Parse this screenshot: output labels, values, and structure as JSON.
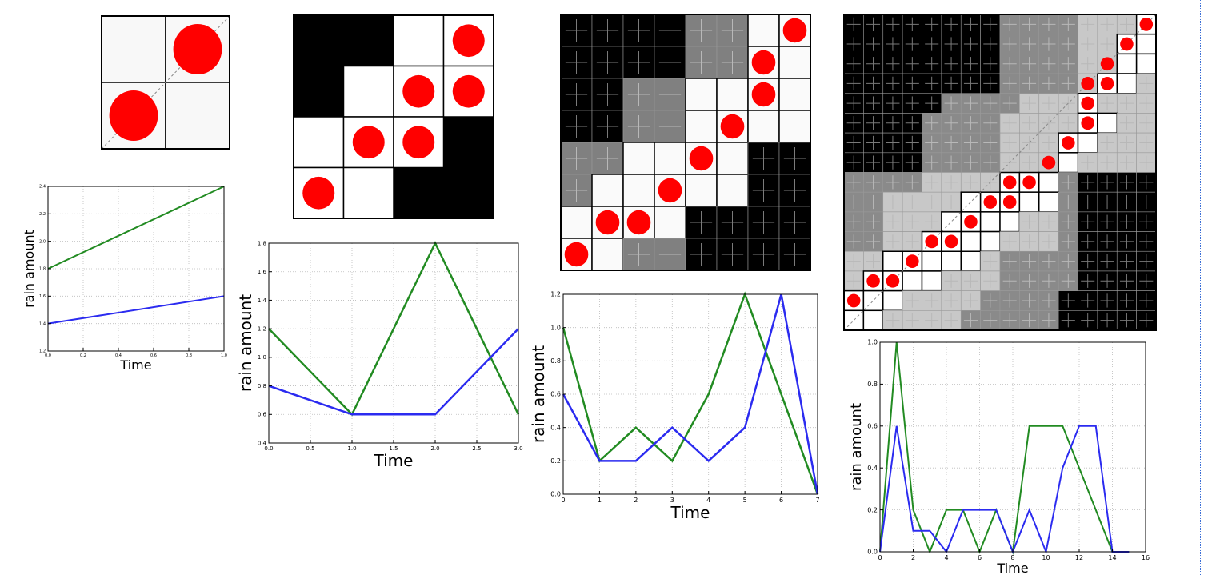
{
  "colors": {
    "series_blue": "#2b2bf0",
    "series_green": "#228b22",
    "dot_red": "#ff0000",
    "cell_black": "#000000",
    "cell_dark_gray": "#808080",
    "cell_light_gray": "#c8c8c8",
    "cell_white": "#fafafa",
    "separator": "#3a6fd8"
  },
  "matrices": [
    {
      "size": 2,
      "levels": [
        [
          0,
          1
        ],
        [
          1,
          0
        ]
      ],
      "base_colors": [
        "#f8f8f8",
        "#f8f8f8"
      ],
      "dots": [
        [
          0,
          1
        ],
        [
          1,
          0
        ]
      ],
      "dot_radius": 0.38,
      "diagonal": true
    },
    {
      "size": 4,
      "levels": [
        [
          0,
          0,
          1,
          1
        ],
        [
          0,
          1,
          1,
          1
        ],
        [
          1,
          1,
          1,
          0
        ],
        [
          1,
          1,
          0,
          0
        ]
      ],
      "base_colors": [
        "#000000",
        "#ffffff"
      ],
      "dots": [
        [
          0,
          3
        ],
        [
          1,
          2
        ],
        [
          1,
          3
        ],
        [
          2,
          1
        ],
        [
          2,
          2
        ],
        [
          3,
          0
        ]
      ],
      "dot_radius": 0.32,
      "diagonal": false
    },
    {
      "size": 8,
      "levels": [
        [
          0,
          0,
          0,
          0,
          1,
          1,
          2,
          2
        ],
        [
          0,
          0,
          0,
          0,
          1,
          1,
          2,
          2
        ],
        [
          0,
          0,
          1,
          1,
          2,
          2,
          2,
          2
        ],
        [
          0,
          0,
          1,
          1,
          2,
          2,
          2,
          2
        ],
        [
          1,
          1,
          2,
          2,
          2,
          2,
          0,
          0
        ],
        [
          1,
          2,
          2,
          2,
          2,
          2,
          0,
          0
        ],
        [
          2,
          2,
          2,
          2,
          0,
          0,
          0,
          0
        ],
        [
          2,
          2,
          1,
          1,
          0,
          0,
          0,
          0
        ]
      ],
      "base_colors": [
        "#000000",
        "#808080",
        "#fafafa"
      ],
      "dots": [
        [
          0,
          7
        ],
        [
          1,
          6
        ],
        [
          2,
          6
        ],
        [
          3,
          5
        ],
        [
          4,
          4
        ],
        [
          5,
          3
        ],
        [
          6,
          1
        ],
        [
          6,
          2
        ],
        [
          7,
          0
        ]
      ],
      "dot_radius": 0.38,
      "diagonal": false
    },
    {
      "size": 16,
      "levels": [
        [
          0,
          0,
          0,
          0,
          0,
          0,
          0,
          0,
          1,
          1,
          1,
          1,
          2,
          2,
          2,
          3
        ],
        [
          0,
          0,
          0,
          0,
          0,
          0,
          0,
          0,
          1,
          1,
          1,
          1,
          2,
          2,
          3,
          3
        ],
        [
          0,
          0,
          0,
          0,
          0,
          0,
          0,
          0,
          1,
          1,
          1,
          1,
          2,
          2,
          3,
          3
        ],
        [
          0,
          0,
          0,
          0,
          0,
          0,
          0,
          0,
          1,
          1,
          1,
          1,
          2,
          3,
          3,
          2
        ],
        [
          0,
          0,
          0,
          0,
          0,
          1,
          1,
          1,
          1,
          2,
          2,
          2,
          3,
          2,
          2,
          2
        ],
        [
          0,
          0,
          0,
          0,
          1,
          1,
          1,
          1,
          2,
          2,
          2,
          2,
          3,
          3,
          2,
          2
        ],
        [
          0,
          0,
          0,
          0,
          1,
          1,
          1,
          1,
          2,
          2,
          2,
          3,
          3,
          2,
          2,
          2
        ],
        [
          0,
          0,
          0,
          0,
          1,
          1,
          1,
          1,
          2,
          2,
          2,
          3,
          2,
          2,
          2,
          2
        ],
        [
          1,
          1,
          1,
          1,
          2,
          2,
          2,
          2,
          3,
          3,
          3,
          1,
          0,
          0,
          0,
          0
        ],
        [
          1,
          1,
          2,
          2,
          2,
          2,
          3,
          3,
          3,
          3,
          3,
          1,
          0,
          0,
          0,
          0
        ],
        [
          1,
          1,
          2,
          2,
          2,
          3,
          3,
          3,
          3,
          2,
          2,
          1,
          0,
          0,
          0,
          0
        ],
        [
          1,
          1,
          2,
          2,
          3,
          3,
          3,
          3,
          2,
          2,
          2,
          1,
          0,
          0,
          0,
          0
        ],
        [
          2,
          2,
          3,
          3,
          3,
          3,
          3,
          2,
          1,
          1,
          1,
          1,
          0,
          0,
          0,
          0
        ],
        [
          2,
          3,
          3,
          3,
          3,
          2,
          2,
          2,
          1,
          1,
          1,
          1,
          0,
          0,
          0,
          0
        ],
        [
          3,
          3,
          3,
          2,
          2,
          2,
          2,
          1,
          1,
          1,
          1,
          0,
          0,
          0,
          0,
          0
        ],
        [
          3,
          3,
          2,
          2,
          2,
          2,
          1,
          1,
          1,
          1,
          1,
          0,
          0,
          0,
          0,
          0
        ]
      ],
      "base_colors": [
        "#000000",
        "#8a8a8a",
        "#c8c8c8",
        "#ffffff"
      ],
      "dots": [
        [
          0,
          15
        ],
        [
          1,
          14
        ],
        [
          2,
          13
        ],
        [
          3,
          12
        ],
        [
          3,
          13
        ],
        [
          4,
          12
        ],
        [
          5,
          12
        ],
        [
          6,
          11
        ],
        [
          7,
          10
        ],
        [
          8,
          9
        ],
        [
          8,
          8
        ],
        [
          9,
          8
        ],
        [
          9,
          7
        ],
        [
          10,
          6
        ],
        [
          11,
          4
        ],
        [
          11,
          5
        ],
        [
          12,
          3
        ],
        [
          13,
          2
        ],
        [
          13,
          1
        ],
        [
          14,
          0
        ]
      ],
      "dot_radius": 0.34,
      "diagonal": true
    }
  ],
  "chart_data": [
    {
      "type": "line",
      "x": [
        0,
        1
      ],
      "series": [
        {
          "color": "#228b22",
          "values": [
            1.8,
            2.4
          ]
        },
        {
          "color": "#2b2bf0",
          "values": [
            1.4,
            1.6
          ]
        }
      ],
      "xlim": [
        0,
        1
      ],
      "ylim": [
        1.2,
        2.4
      ],
      "xticks": [
        0,
        0.2,
        0.4,
        0.6,
        0.8,
        1.0
      ],
      "yticks": [
        1.2,
        1.4,
        1.6,
        1.8,
        2.0,
        2.2,
        2.4
      ],
      "xticklabels": [
        "0.0",
        "0.2",
        "0.4",
        "0.6",
        "0.8",
        "1.0"
      ],
      "yticklabels": [
        "1.2",
        "1.4",
        "1.6",
        "1.8",
        "2.0",
        "2.2",
        "2.4"
      ],
      "xlabel": "Time",
      "ylabel": "rain amount",
      "grid": true
    },
    {
      "type": "line",
      "x": [
        0,
        1,
        2,
        3
      ],
      "series": [
        {
          "color": "#228b22",
          "values": [
            1.2,
            0.6,
            1.8,
            0.6
          ]
        },
        {
          "color": "#2b2bf0",
          "values": [
            0.8,
            0.6,
            0.6,
            1.2
          ]
        }
      ],
      "xlim": [
        0,
        3
      ],
      "ylim": [
        0.4,
        1.8
      ],
      "xticks": [
        0,
        0.5,
        1.0,
        1.5,
        2.0,
        2.5,
        3.0
      ],
      "yticks": [
        0.4,
        0.6,
        0.8,
        1.0,
        1.2,
        1.4,
        1.6,
        1.8
      ],
      "xticklabels": [
        "0.0",
        "0.5",
        "1.0",
        "1.5",
        "2.0",
        "2.5",
        "3.0"
      ],
      "yticklabels": [
        "0.4",
        "0.6",
        "0.8",
        "1.0",
        "1.2",
        "1.4",
        "1.6",
        "1.8"
      ],
      "xlabel": "Time",
      "ylabel": "rain amount",
      "grid": true
    },
    {
      "type": "line",
      "x": [
        0,
        1,
        2,
        3,
        4,
        5,
        6,
        7
      ],
      "series": [
        {
          "color": "#228b22",
          "values": [
            1.0,
            0.2,
            0.4,
            0.2,
            0.6,
            1.2,
            0.6,
            0.0
          ]
        },
        {
          "color": "#2b2bf0",
          "values": [
            0.6,
            0.2,
            0.2,
            0.4,
            0.2,
            0.4,
            1.2,
            0.0
          ]
        }
      ],
      "xlim": [
        0,
        7
      ],
      "ylim": [
        0,
        1.2
      ],
      "xticks": [
        0,
        1,
        2,
        3,
        4,
        5,
        6,
        7
      ],
      "yticks": [
        0,
        0.2,
        0.4,
        0.6,
        0.8,
        1.0,
        1.2
      ],
      "xticklabels": [
        "0",
        "1",
        "2",
        "3",
        "4",
        "5",
        "6",
        "7"
      ],
      "yticklabels": [
        "0.0",
        "0.2",
        "0.4",
        "0.6",
        "0.8",
        "1.0",
        "1.2"
      ],
      "xlabel": "Time",
      "ylabel": "rain amount",
      "grid": true
    },
    {
      "type": "line",
      "x": [
        0,
        1,
        2,
        3,
        4,
        5,
        6,
        7,
        8,
        9,
        10,
        11,
        12,
        13,
        14,
        15
      ],
      "series": [
        {
          "color": "#228b22",
          "values": [
            0.0,
            1.0,
            0.2,
            0.0,
            0.2,
            0.2,
            0.0,
            0.2,
            0.0,
            0.6,
            0.6,
            0.6,
            0.4,
            0.2,
            0.0,
            0.0
          ]
        },
        {
          "color": "#2b2bf0",
          "values": [
            0.0,
            0.6,
            0.1,
            0.1,
            0.0,
            0.2,
            0.2,
            0.2,
            0.0,
            0.2,
            0.0,
            0.4,
            0.6,
            0.6,
            0.0,
            0.0
          ]
        }
      ],
      "xlim": [
        0,
        16
      ],
      "ylim": [
        0,
        1.0
      ],
      "xticks": [
        0,
        2,
        4,
        6,
        8,
        10,
        12,
        14,
        16
      ],
      "yticks": [
        0,
        0.2,
        0.4,
        0.6,
        0.8,
        1.0
      ],
      "xticklabels": [
        "0",
        "2",
        "4",
        "6",
        "8",
        "10",
        "12",
        "14",
        "16"
      ],
      "yticklabels": [
        "0.0",
        "0.2",
        "0.4",
        "0.6",
        "0.8",
        "1.0"
      ],
      "xlabel": "Time",
      "ylabel": "rain amount",
      "grid": true
    }
  ]
}
